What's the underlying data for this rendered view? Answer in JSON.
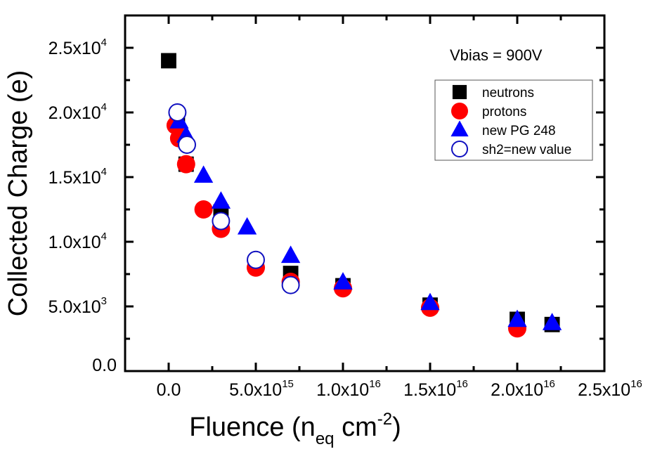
{
  "chart_data": {
    "type": "scatter",
    "xlabel": {
      "main": "Fluence (n",
      "sub": "eq",
      "mid": " cm",
      "sup": "-2",
      "end": ")"
    },
    "ylabel": "Collected Charge (e)",
    "xlim": [
      -2500000000000000.0,
      2.5e+16
    ],
    "ylim": [
      0,
      27500
    ],
    "x_ticks": [
      {
        "value": 0,
        "mant": "0.0",
        "exp": ""
      },
      {
        "value": 5000000000000000.0,
        "mant": "5.0x10",
        "exp": "15"
      },
      {
        "value": 1e+16,
        "mant": "1.0x10",
        "exp": "16"
      },
      {
        "value": 1.5e+16,
        "mant": "1.5x10",
        "exp": "16"
      },
      {
        "value": 2e+16,
        "mant": "2.0x10",
        "exp": "16"
      },
      {
        "value": 2.5e+16,
        "mant": "2.5x10",
        "exp": "16"
      }
    ],
    "y_ticks": [
      {
        "value": 0,
        "mant": "0.0",
        "exp": ""
      },
      {
        "value": 5000,
        "mant": "5.0x10",
        "exp": "3"
      },
      {
        "value": 10000,
        "mant": "1.0x10",
        "exp": "4"
      },
      {
        "value": 15000,
        "mant": "1.5x10",
        "exp": "4"
      },
      {
        "value": 20000,
        "mant": "2.0x10",
        "exp": "4"
      },
      {
        "value": 25000,
        "mant": "2.5x10",
        "exp": "4"
      }
    ],
    "annotation": "Vbias = 900V",
    "legend_position": "top-right",
    "grid": false,
    "series": [
      {
        "name": "neutrons",
        "marker": "square",
        "color": "#000000",
        "points": [
          [
            0,
            24000
          ],
          [
            500000000000000.0,
            19500
          ],
          [
            1000000000000000.0,
            16000
          ],
          [
            3000000000000000.0,
            12300
          ],
          [
            7000000000000000.0,
            7550
          ],
          [
            1e+16,
            6600
          ],
          [
            1.5e+16,
            5100
          ],
          [
            2e+16,
            4000
          ],
          [
            2.2e+16,
            3600
          ]
        ]
      },
      {
        "name": "protons",
        "marker": "circle",
        "color": "#ff0000",
        "points": [
          [
            400000000000000.0,
            19000
          ],
          [
            600000000000000.0,
            18000
          ],
          [
            1000000000000000.0,
            16000
          ],
          [
            2000000000000000.0,
            12500
          ],
          [
            3000000000000000.0,
            11000
          ],
          [
            5000000000000000.0,
            8000
          ],
          [
            7000000000000000.0,
            6900
          ],
          [
            1e+16,
            6400
          ],
          [
            1.5e+16,
            4900
          ],
          [
            2e+16,
            3300
          ]
        ]
      },
      {
        "name": "new PG 248",
        "marker": "triangle",
        "color": "#0000ff",
        "points": [
          [
            600000000000000.0,
            19300
          ],
          [
            1000000000000000.0,
            18200
          ],
          [
            2000000000000000.0,
            15100
          ],
          [
            3000000000000000.0,
            13100
          ],
          [
            4500000000000000.0,
            11100
          ],
          [
            7000000000000000.0,
            8900
          ],
          [
            1e+16,
            6850
          ],
          [
            1.5e+16,
            5250
          ],
          [
            2e+16,
            3950
          ],
          [
            2.2e+16,
            3700
          ]
        ]
      },
      {
        "name": "sh2=new value",
        "marker": "open-circle",
        "color": "#1010c0",
        "points": [
          [
            500000000000000.0,
            20000
          ],
          [
            1050000000000000.0,
            17500
          ],
          [
            3000000000000000.0,
            11600
          ],
          [
            5000000000000000.0,
            8600
          ],
          [
            7000000000000000.0,
            6650
          ]
        ]
      }
    ]
  }
}
